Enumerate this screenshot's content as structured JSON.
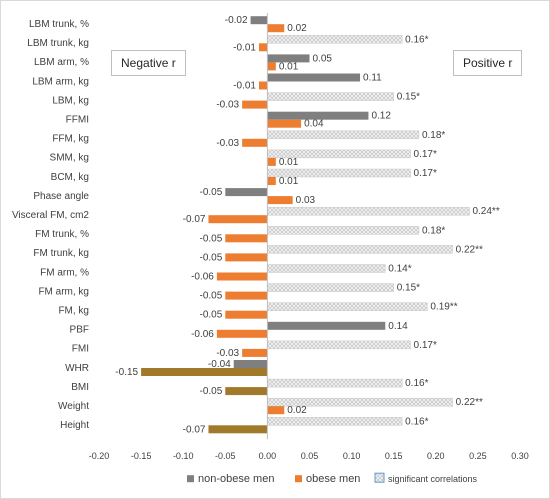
{
  "chart_data": {
    "type": "bar",
    "orientation": "horizontal",
    "categories": [
      "LBM trunk, %",
      "LBM trunk, kg",
      "LBM arm, %",
      "LBM arm, kg",
      "LBM, kg",
      "FFMI",
      "FFM, kg",
      "SMM, kg",
      "BCM, kg",
      "Phase angle",
      "Visceral FM, cm2",
      "FM trunk, %",
      "FM trunk, kg",
      "FM arm, %",
      "FM arm, kg",
      "FM, kg",
      "PBF",
      "FMI",
      "WHR",
      "BMI",
      "Weight",
      "Height"
    ],
    "series": [
      {
        "name": "non-obese men",
        "values": [
          -0.02,
          0.16,
          0.05,
          0.11,
          0.15,
          0.12,
          0.18,
          0.17,
          0.17,
          -0.05,
          0.24,
          0.18,
          0.22,
          0.14,
          0.15,
          0.19,
          0.14,
          0.17,
          -0.04,
          0.16,
          0.22,
          0.16
        ],
        "labels": [
          "-0.02",
          "0.16*",
          "0.05",
          "0.11",
          "0.15*",
          "0.12",
          "0.18*",
          "0.17*",
          "0.17*",
          "-0.05",
          "0.24**",
          "0.18*",
          "0.22**",
          "0.14*",
          "0.15*",
          "0.19**",
          "0.14",
          "0.17*",
          "-0.04",
          "0.16*",
          "0.22**",
          "0.16*"
        ],
        "significant": [
          false,
          true,
          false,
          false,
          true,
          false,
          true,
          true,
          true,
          false,
          true,
          true,
          true,
          true,
          true,
          true,
          false,
          true,
          false,
          true,
          true,
          true
        ],
        "color": "#7f7f7f"
      },
      {
        "name": "obese men",
        "values": [
          0.02,
          -0.01,
          0.01,
          -0.01,
          -0.03,
          0.04,
          -0.03,
          0.01,
          0.01,
          0.03,
          -0.07,
          -0.05,
          -0.05,
          -0.06,
          -0.05,
          -0.05,
          -0.06,
          -0.03,
          -0.15,
          -0.05,
          0.02,
          -0.07
        ],
        "labels": [
          "0.02",
          "-0.01",
          "0.01",
          "-0.01",
          "-0.03",
          "0.04",
          "-0.03",
          "0.01",
          "0.01",
          "0.03",
          "-0.07",
          "-0.05",
          "-0.05",
          "-0.06",
          "-0.05",
          "-0.05",
          "-0.06",
          "-0.03",
          "-0.15",
          "-0.05",
          "0.02",
          "-0.07"
        ],
        "colors": [
          "#ed7d31",
          "#ed7d31",
          "#ed7d31",
          "#ed7d31",
          "#ed7d31",
          "#ed7d31",
          "#ed7d31",
          "#ed7d31",
          "#ed7d31",
          "#ed7d31",
          "#ed7d31",
          "#ed7d31",
          "#ed7d31",
          "#ed7d31",
          "#ed7d31",
          "#ed7d31",
          "#ed7d31",
          "#ed7d31",
          "#a07a2a",
          "#a07a2a",
          "#ed7d31",
          "#a07a2a"
        ]
      }
    ],
    "legend": [
      {
        "label": "non-obese men",
        "swatch": "solid-gray"
      },
      {
        "label": "obese men",
        "swatch": "solid-orange"
      },
      {
        "label": "significant correlations",
        "swatch": "patterned-light-gray"
      }
    ],
    "legend_position": "bottom",
    "x_ticks": [
      "-0.20",
      "-0.15",
      "-0.10",
      "-0.05",
      "0.00",
      "0.05",
      "0.10",
      "0.15",
      "0.20",
      "0.25",
      "0.30"
    ],
    "xlim": [
      -0.2,
      0.3
    ],
    "callouts": [
      "Negative r",
      "Positive r"
    ],
    "grid": false
  }
}
